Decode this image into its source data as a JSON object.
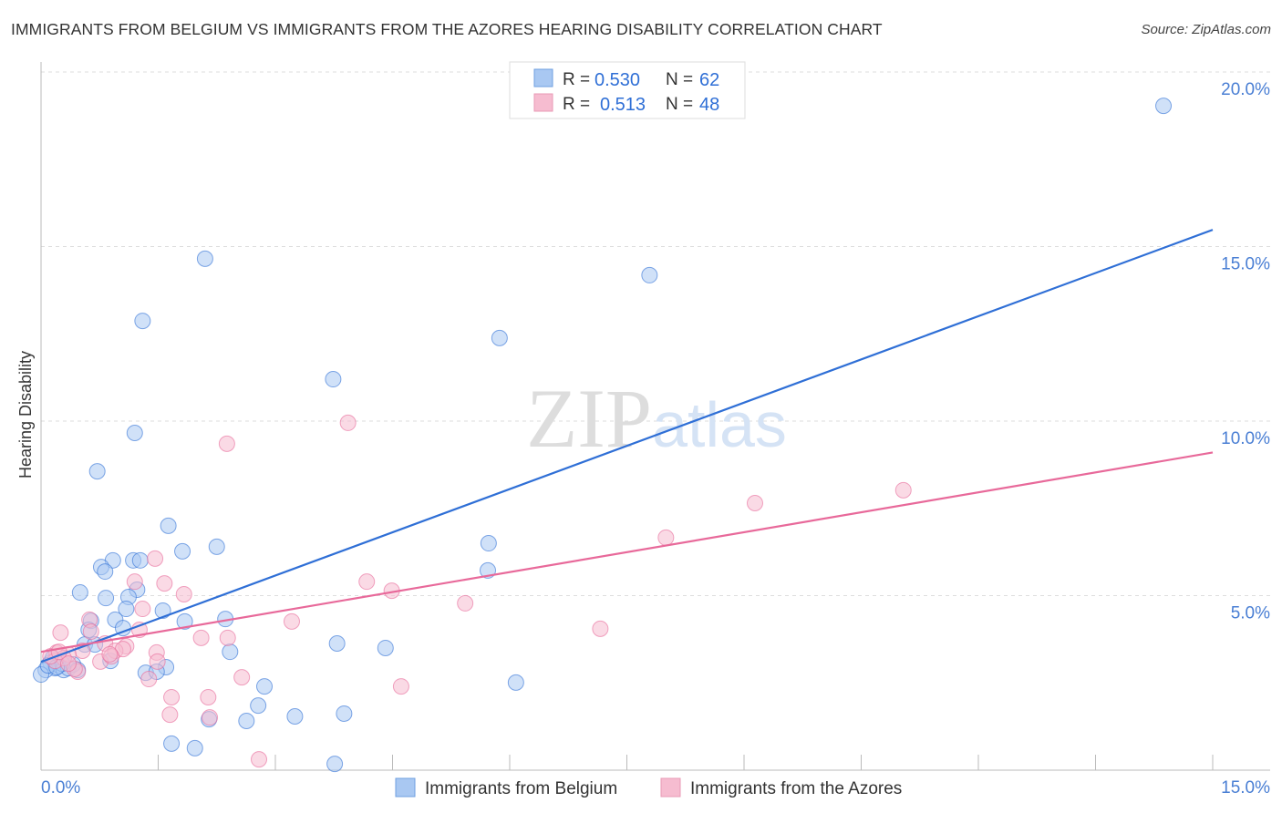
{
  "chart_data": {
    "type": "scatter",
    "title": "IMMIGRANTS FROM BELGIUM VS IMMIGRANTS FROM THE AZORES HEARING DISABILITY CORRELATION CHART",
    "source": "Source: ZipAtlas.com",
    "xlabel": "",
    "ylabel": "Hearing Disability",
    "xlim": [
      0,
      15
    ],
    "ylim": [
      0,
      20
    ],
    "x_tick_labels": [
      "0.0%",
      "15.0%"
    ],
    "y_ticks": [
      5,
      10,
      15,
      20
    ],
    "y_tick_labels": [
      "5.0%",
      "10.0%",
      "15.0%",
      "20.0%"
    ],
    "grid": true,
    "legend_position": "top-center",
    "watermark": "ZIPatlas",
    "colors": {
      "blue": "#2f6fd6",
      "blue_fill": "#a9c8f2",
      "pink": "#e8699a",
      "pink_fill": "#f6bcd0"
    },
    "stats": [
      {
        "r_label": "R =",
        "r": "0.530",
        "n_label": "N =",
        "n": "62"
      },
      {
        "r_label": "R =",
        "r": "0.513",
        "n_label": "N =",
        "n": "48"
      }
    ],
    "series": [
      {
        "name": "Immigrants from Belgium",
        "color": "blue",
        "trend": [
          [
            0,
            3.1
          ],
          [
            15,
            15.48
          ]
        ],
        "points": [
          [
            14.37,
            19.03
          ],
          [
            2.1,
            14.65
          ],
          [
            7.79,
            14.18
          ],
          [
            1.3,
            12.87
          ],
          [
            5.87,
            12.38
          ],
          [
            3.74,
            11.2
          ],
          [
            1.2,
            9.66
          ],
          [
            0.72,
            8.56
          ],
          [
            1.63,
            7.0
          ],
          [
            5.73,
            6.5
          ],
          [
            2.25,
            6.4
          ],
          [
            1.81,
            6.27
          ],
          [
            0.92,
            6.01
          ],
          [
            1.18,
            6.01
          ],
          [
            1.27,
            6.01
          ],
          [
            0.77,
            5.82
          ],
          [
            0.82,
            5.69
          ],
          [
            5.72,
            5.72
          ],
          [
            0.5,
            5.09
          ],
          [
            1.23,
            5.17
          ],
          [
            1.12,
            4.96
          ],
          [
            0.83,
            4.93
          ],
          [
            1.56,
            4.57
          ],
          [
            1.09,
            4.62
          ],
          [
            2.36,
            4.33
          ],
          [
            0.95,
            4.31
          ],
          [
            0.64,
            4.28
          ],
          [
            1.84,
            4.26
          ],
          [
            1.05,
            4.07
          ],
          [
            0.61,
            4.02
          ],
          [
            3.79,
            3.63
          ],
          [
            4.41,
            3.5
          ],
          [
            0.56,
            3.6
          ],
          [
            2.42,
            3.39
          ],
          [
            0.69,
            3.6
          ],
          [
            0.89,
            3.13
          ],
          [
            1.6,
            2.95
          ],
          [
            1.34,
            2.79
          ],
          [
            1.48,
            2.82
          ],
          [
            6.08,
            2.51
          ],
          [
            2.86,
            2.4
          ],
          [
            2.78,
            1.85
          ],
          [
            3.25,
            1.54
          ],
          [
            3.88,
            1.62
          ],
          [
            2.15,
            1.46
          ],
          [
            2.63,
            1.41
          ],
          [
            1.67,
            0.76
          ],
          [
            1.97,
            0.63
          ],
          [
            3.76,
            0.18
          ],
          [
            0.12,
            3.08
          ],
          [
            0.18,
            2.92
          ],
          [
            0.23,
            3.0
          ],
          [
            0.29,
            2.87
          ],
          [
            0.35,
            2.92
          ],
          [
            0.41,
            3.03
          ],
          [
            0.06,
            2.87
          ],
          [
            0.0,
            2.74
          ],
          [
            0.15,
            3.21
          ],
          [
            0.27,
            3.05
          ],
          [
            0.47,
            2.87
          ],
          [
            0.09,
            3.0
          ],
          [
            0.2,
            2.95
          ]
        ]
      },
      {
        "name": "Immigrants from the Azores",
        "color": "pink",
        "trend": [
          [
            0,
            3.39
          ],
          [
            15,
            9.1
          ]
        ],
        "points": [
          [
            3.93,
            9.95
          ],
          [
            2.38,
            9.35
          ],
          [
            9.14,
            7.65
          ],
          [
            11.04,
            8.02
          ],
          [
            8.0,
            6.66
          ],
          [
            1.46,
            6.06
          ],
          [
            1.2,
            5.4
          ],
          [
            1.58,
            5.35
          ],
          [
            4.17,
            5.4
          ],
          [
            4.49,
            5.14
          ],
          [
            1.83,
            5.04
          ],
          [
            5.43,
            4.78
          ],
          [
            1.3,
            4.62
          ],
          [
            3.21,
            4.26
          ],
          [
            7.16,
            4.05
          ],
          [
            1.26,
            4.02
          ],
          [
            0.25,
            3.94
          ],
          [
            0.62,
            4.31
          ],
          [
            0.64,
            3.97
          ],
          [
            2.39,
            3.79
          ],
          [
            2.05,
            3.79
          ],
          [
            1.09,
            3.55
          ],
          [
            0.82,
            3.63
          ],
          [
            0.95,
            3.42
          ],
          [
            1.05,
            3.47
          ],
          [
            0.53,
            3.42
          ],
          [
            0.2,
            3.37
          ],
          [
            0.35,
            3.32
          ],
          [
            1.48,
            3.37
          ],
          [
            1.49,
            3.11
          ],
          [
            0.76,
            3.11
          ],
          [
            0.9,
            3.26
          ],
          [
            2.57,
            2.66
          ],
          [
            1.38,
            2.61
          ],
          [
            4.61,
            2.4
          ],
          [
            1.67,
            2.09
          ],
          [
            2.14,
            2.09
          ],
          [
            1.65,
            1.59
          ],
          [
            2.16,
            1.51
          ],
          [
            2.79,
            0.31
          ],
          [
            0.47,
            2.82
          ],
          [
            0.43,
            2.9
          ],
          [
            0.29,
            3.21
          ],
          [
            0.18,
            3.13
          ],
          [
            0.12,
            3.26
          ],
          [
            0.35,
            3.05
          ],
          [
            0.23,
            3.39
          ],
          [
            0.88,
            3.32
          ]
        ]
      }
    ]
  }
}
